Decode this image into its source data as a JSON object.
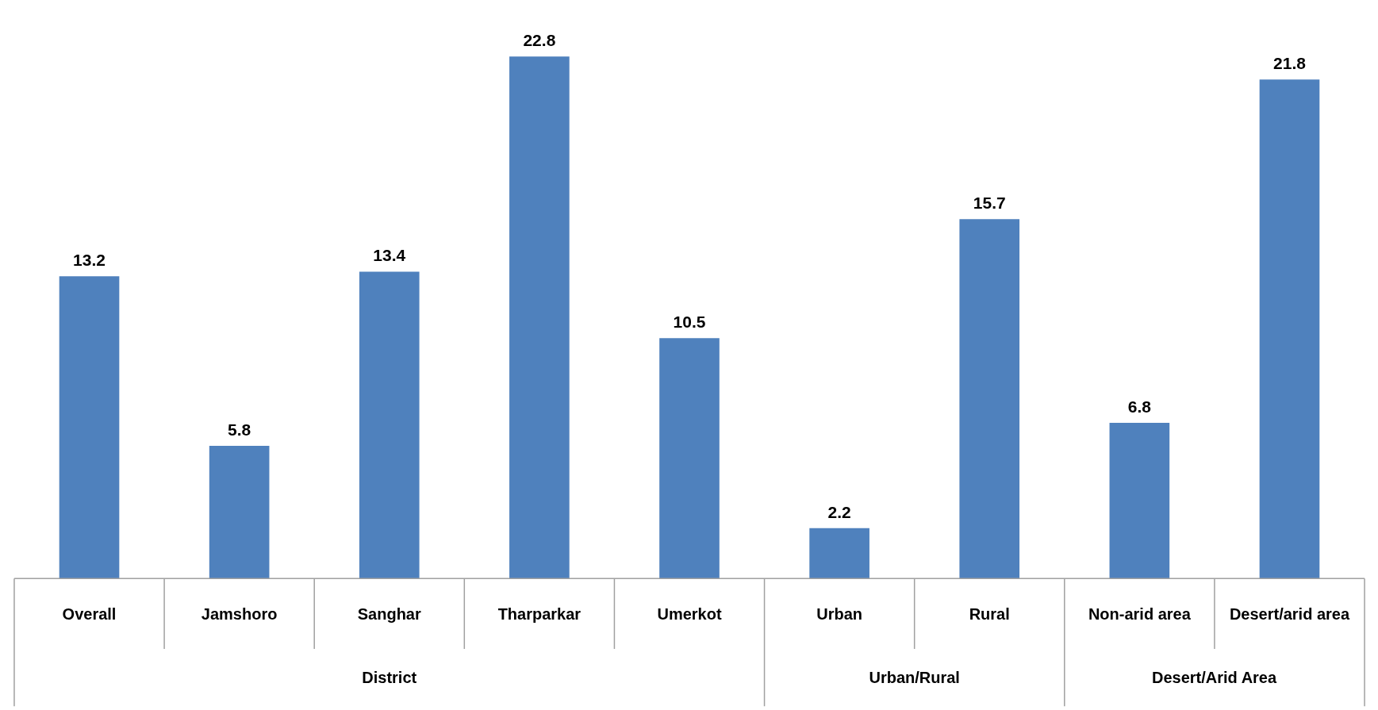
{
  "chart_data": {
    "type": "bar",
    "categories": [
      "Overall",
      "Jamshoro",
      "Sanghar",
      "Tharparkar",
      "Umerkot",
      "Urban",
      "Rural",
      "Non-arid area",
      "Desert/arid area"
    ],
    "values": [
      13.2,
      5.8,
      13.4,
      22.8,
      10.5,
      2.2,
      15.7,
      6.8,
      21.8
    ],
    "color": "#4f81bd",
    "data_labels": true,
    "grid": false,
    "annotations": [
      "District",
      "Urban/Rural",
      "Desert/Arid Area"
    ]
  }
}
